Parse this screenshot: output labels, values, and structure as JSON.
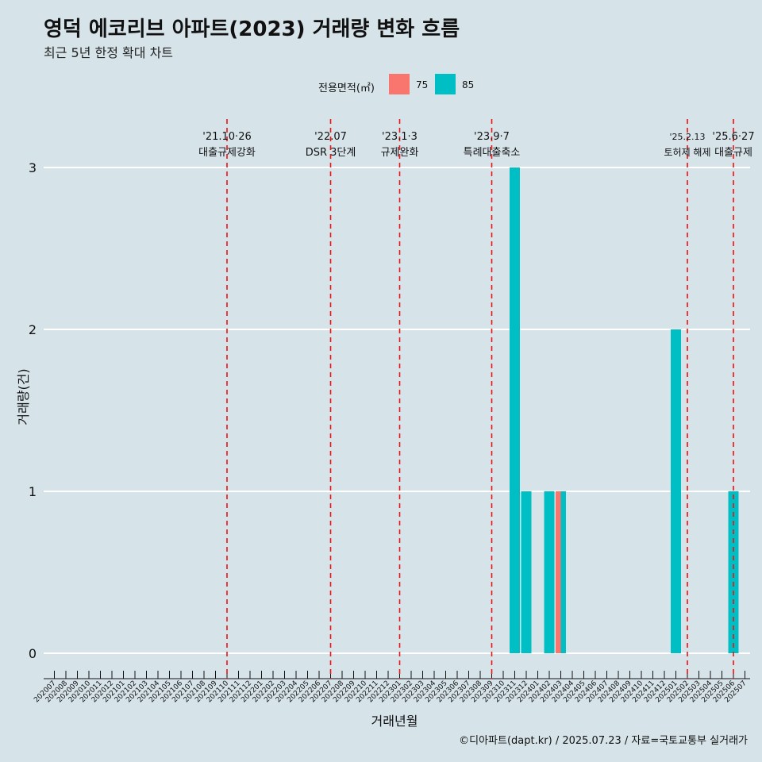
{
  "title": "영덕 에코리브 아파트(2023) 거래량 변화 흐름",
  "subtitle": "최근 5년 한정 확대 차트",
  "caption": "©디아파트(dapt.kr) / 2025.07.23 / 자료=국토교통부 실거래가",
  "legend": {
    "title": "전용면적(㎡)",
    "items": [
      {
        "label": "75",
        "color": "#f8766d"
      },
      {
        "label": "85",
        "color": "#00bfc4"
      }
    ]
  },
  "chart_data": {
    "type": "bar",
    "xlabel": "거래년월",
    "ylabel": "거래량(건)",
    "ylim": [
      0,
      3
    ],
    "yticks": [
      0,
      1,
      2,
      3
    ],
    "grid": true,
    "legend_position": "top",
    "categories": [
      "202007",
      "202008",
      "202009",
      "202010",
      "202011",
      "202012",
      "202101",
      "202102",
      "202103",
      "202104",
      "202105",
      "202106",
      "202107",
      "202108",
      "202109",
      "202110",
      "202111",
      "202112",
      "202201",
      "202202",
      "202203",
      "202204",
      "202205",
      "202206",
      "202207",
      "202208",
      "202209",
      "202210",
      "202211",
      "202212",
      "202301",
      "202302",
      "202303",
      "202304",
      "202305",
      "202306",
      "202307",
      "202308",
      "202309",
      "202310",
      "202311",
      "202312",
      "202401",
      "202402",
      "202403",
      "202404",
      "202405",
      "202406",
      "202407",
      "202408",
      "202409",
      "202410",
      "202411",
      "202412",
      "202501",
      "202502",
      "202503",
      "202504",
      "202505",
      "202506",
      "202507"
    ],
    "series": [
      {
        "name": "75",
        "color": "#f8766d",
        "points": [
          {
            "x": "202403",
            "y": 1
          }
        ]
      },
      {
        "name": "85",
        "color": "#00bfc4",
        "points": [
          {
            "x": "202311",
            "y": 3
          },
          {
            "x": "202312",
            "y": 1
          },
          {
            "x": "202402",
            "y": 1
          },
          {
            "x": "202403",
            "y": 1
          },
          {
            "x": "202501",
            "y": 2
          },
          {
            "x": "202506",
            "y": 1
          }
        ]
      }
    ],
    "annotations": [
      {
        "x": "202110",
        "offset": 0.0,
        "date": "'21.10·26",
        "text": "대출규제강화"
      },
      {
        "x": "202207",
        "offset": 0.0,
        "date": "'22.07",
        "text": "DSR 3단계"
      },
      {
        "x": "202301",
        "offset": 0.0,
        "date": "'23.1·3",
        "text": "규제완화"
      },
      {
        "x": "202309",
        "offset": 0.0,
        "date": "'23.9·7",
        "text": "특례대출축소"
      },
      {
        "x": "202502",
        "offset": 0.0,
        "date": "'25.2.13",
        "text": "토허제 해제"
      },
      {
        "x": "202506",
        "offset": 0.0,
        "date": "'25.6·27",
        "text": "대출규제"
      }
    ]
  }
}
